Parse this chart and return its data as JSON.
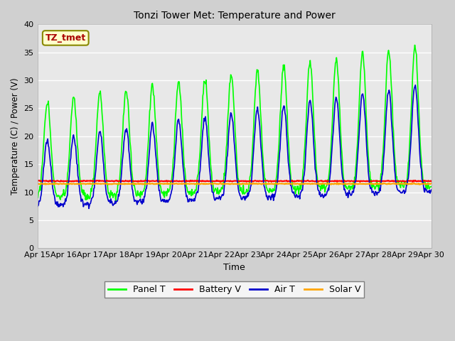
{
  "title": "Tonzi Tower Met: Temperature and Power",
  "xlabel": "Time",
  "ylabel": "Temperature (C) / Power (V)",
  "annotation": "TZ_tmet",
  "ylim": [
    0,
    40
  ],
  "facecolor": "#e8e8e8",
  "grid_color": "#ffffff",
  "series": {
    "panel_t": {
      "color": "#00ff00",
      "label": "Panel T",
      "linewidth": 1.2
    },
    "battery_v": {
      "color": "#ff0000",
      "label": "Battery V",
      "linewidth": 1.5
    },
    "air_t": {
      "color": "#0000cc",
      "label": "Air T",
      "linewidth": 1.2
    },
    "solar_v": {
      "color": "#ffa500",
      "label": "Solar V",
      "linewidth": 1.5
    }
  },
  "x_tick_labels": [
    "Apr 15",
    "Apr 16",
    "Apr 17",
    "Apr 18",
    "Apr 19",
    "Apr 20",
    "Apr 21",
    "Apr 22",
    "Apr 23",
    "Apr 24",
    "Apr 25",
    "Apr 26",
    "Apr 27",
    "Apr 28",
    "Apr 29",
    "Apr 30"
  ],
  "x_ticks": [
    0,
    1,
    2,
    3,
    4,
    5,
    6,
    7,
    8,
    9,
    10,
    11,
    12,
    13,
    14,
    15
  ],
  "y_ticks": [
    0,
    5,
    10,
    15,
    20,
    25,
    30,
    35,
    40
  ],
  "xlim": [
    0,
    15
  ]
}
